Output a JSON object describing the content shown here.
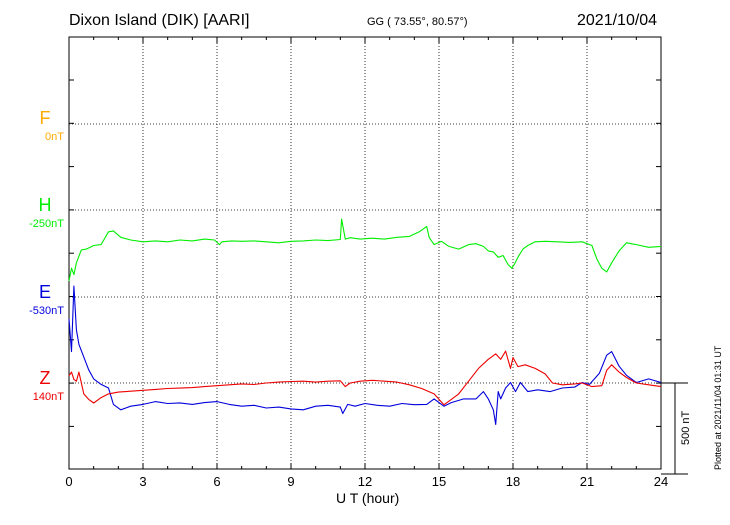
{
  "header": {
    "station": "Dixon Island (DIK)  [AARI]",
    "coords": "GG ( 73.55°,  80.57°)",
    "date": "2021/10/04"
  },
  "footer": {
    "plotted": "Plotted at 2021/11/04 01:31  UT",
    "scale": "500 nT"
  },
  "chart_data": {
    "type": "line",
    "xlabel": "U T (hour)",
    "xlim": [
      0,
      24
    ],
    "x_ticks": [
      "0",
      "3",
      "6",
      "9",
      "12",
      "15",
      "18",
      "21",
      "24"
    ],
    "grid": true,
    "scale_bar_nT": 500,
    "series": [
      {
        "name": "F",
        "baseline": "0nT",
        "color": "#ffaa00",
        "x": [],
        "y": []
      },
      {
        "name": "H",
        "baseline": "-250nT",
        "color": "#00ee00",
        "x": [
          0.0,
          0.1,
          0.2,
          0.3,
          0.5,
          0.7,
          1.0,
          1.3,
          1.6,
          1.8,
          2.1,
          2.5,
          3.0,
          3.5,
          4.0,
          4.5,
          5.0,
          5.5,
          5.9,
          6.1,
          6.2,
          6.6,
          7.0,
          7.5,
          8.0,
          8.5,
          9.0,
          9.5,
          10.0,
          10.5,
          11.0,
          11.05,
          11.2,
          11.4,
          11.8,
          12.3,
          12.8,
          13.3,
          13.8,
          14.2,
          14.5,
          14.6,
          14.8,
          15.1,
          15.4,
          15.8,
          16.2,
          16.5,
          16.8,
          17.0,
          17.2,
          17.4,
          17.6,
          17.8,
          17.95,
          18.05,
          18.2,
          18.4,
          18.6,
          18.9,
          19.3,
          19.8,
          20.3,
          20.8,
          21.2,
          21.4,
          21.6,
          21.8,
          22.0,
          22.3,
          22.6,
          23.0,
          23.5,
          24.0
        ],
        "y": [
          -390,
          -320,
          -355,
          -290,
          -220,
          -215,
          -195,
          -190,
          -120,
          -115,
          -150,
          -165,
          -175,
          -170,
          -175,
          -165,
          -170,
          -160,
          -165,
          -190,
          -175,
          -170,
          -172,
          -170,
          -175,
          -180,
          -172,
          -170,
          -165,
          -168,
          -162,
          -50,
          -160,
          -152,
          -160,
          -155,
          -160,
          -150,
          -145,
          -120,
          -90,
          -150,
          -190,
          -172,
          -200,
          -215,
          -190,
          -185,
          -200,
          -225,
          -230,
          -260,
          -250,
          -300,
          -320,
          -300,
          -260,
          -215,
          -195,
          -175,
          -172,
          -175,
          -178,
          -175,
          -195,
          -270,
          -320,
          -340,
          -290,
          -225,
          -180,
          -190,
          -205,
          -200
        ]
      },
      {
        "name": "E",
        "baseline": "-530nT",
        "color": "#0000dd",
        "x": [
          0.0,
          0.1,
          0.2,
          0.3,
          0.4,
          0.6,
          0.8,
          1.0,
          1.3,
          1.6,
          1.8,
          2.1,
          2.5,
          3.0,
          3.5,
          4.0,
          4.5,
          5.0,
          5.5,
          6.0,
          6.5,
          7.0,
          7.5,
          8.0,
          8.5,
          9.0,
          9.5,
          10.0,
          10.5,
          11.0,
          11.1,
          11.3,
          11.6,
          12.0,
          12.5,
          13.0,
          13.5,
          14.0,
          14.5,
          14.8,
          15.2,
          15.5,
          16.0,
          16.5,
          16.8,
          17.0,
          17.2,
          17.3,
          17.4,
          17.5,
          17.7,
          17.9,
          18.1,
          18.3,
          18.6,
          19.0,
          19.5,
          20.0,
          20.5,
          20.8,
          21.1,
          21.5,
          21.8,
          22.0,
          22.3,
          22.6,
          23.0,
          23.5,
          24.0
        ],
        "y": [
          -120,
          -300,
          60,
          -180,
          -260,
          -330,
          -400,
          -450,
          -480,
          -500,
          -590,
          -620,
          -600,
          -590,
          -575,
          -585,
          -582,
          -590,
          -580,
          -575,
          -590,
          -600,
          -595,
          -610,
          -605,
          -615,
          -620,
          -600,
          -595,
          -605,
          -640,
          -590,
          -600,
          -585,
          -595,
          -600,
          -585,
          -592,
          -590,
          -560,
          -600,
          -580,
          -560,
          -560,
          -520,
          -560,
          -620,
          -700,
          -520,
          -560,
          -500,
          -470,
          -520,
          -470,
          -520,
          -510,
          -520,
          -500,
          -495,
          -470,
          -480,
          -420,
          -320,
          -300,
          -380,
          -430,
          -470,
          -450,
          -470
        ]
      },
      {
        "name": "Z",
        "baseline": "140nT",
        "color": "#ee0000",
        "x": [
          0.0,
          0.1,
          0.2,
          0.3,
          0.4,
          0.6,
          0.8,
          1.0,
          1.3,
          1.6,
          2.0,
          2.5,
          3.0,
          3.5,
          4.0,
          4.5,
          5.0,
          5.5,
          6.0,
          6.5,
          7.0,
          7.5,
          8.0,
          8.5,
          9.0,
          9.5,
          10.0,
          10.5,
          11.0,
          11.2,
          11.4,
          11.8,
          12.3,
          12.8,
          13.3,
          13.8,
          14.3,
          14.8,
          15.2,
          15.5,
          15.8,
          16.2,
          16.6,
          17.0,
          17.3,
          17.5,
          17.7,
          17.9,
          18.0,
          18.2,
          18.5,
          18.9,
          19.3,
          19.6,
          20.0,
          20.5,
          20.8,
          21.2,
          21.6,
          21.8,
          22.0,
          22.3,
          22.6,
          23.0,
          23.5,
          24.0
        ],
        "y": [
          40,
          60,
          20,
          10,
          60,
          -60,
          -90,
          -110,
          -80,
          -60,
          -50,
          -45,
          -40,
          -35,
          -30,
          -28,
          -25,
          -20,
          -15,
          -10,
          -5,
          -8,
          0,
          5,
          8,
          10,
          5,
          10,
          12,
          -20,
          0,
          10,
          15,
          10,
          5,
          -10,
          -30,
          -60,
          -120,
          -90,
          -60,
          10,
          80,
          130,
          160,
          130,
          175,
          80,
          140,
          90,
          100,
          80,
          50,
          0,
          -10,
          -5,
          0,
          -20,
          -15,
          70,
          100,
          60,
          30,
          0,
          -10,
          -20
        ]
      }
    ]
  }
}
